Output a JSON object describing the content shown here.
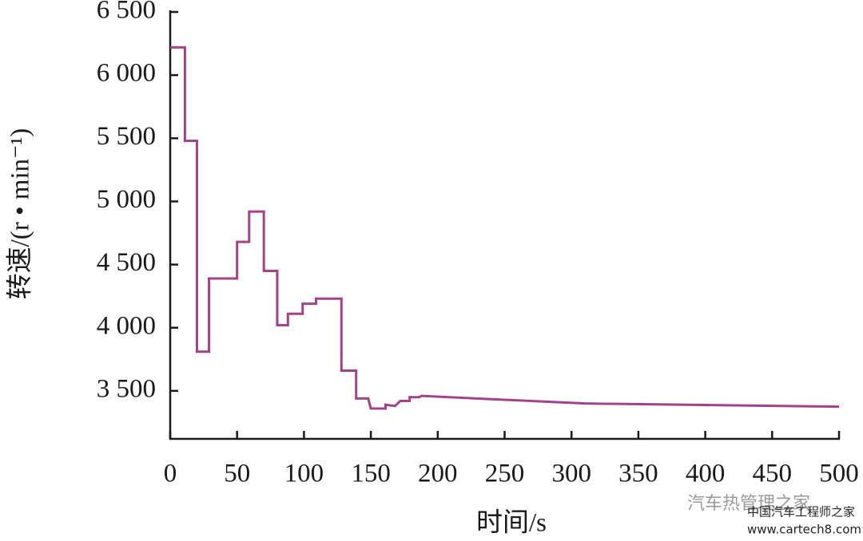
{
  "chart_data": {
    "type": "line",
    "x_label": "时间/s",
    "y_label": "转速/(r • min⁻¹)",
    "x": [
      0,
      11,
      11,
      20,
      20,
      29,
      29,
      50,
      50,
      59,
      59,
      70,
      70,
      80,
      80,
      88,
      88,
      99,
      99,
      109,
      109,
      128,
      128,
      139,
      139,
      148,
      150,
      161,
      161,
      168,
      172,
      179,
      179,
      186,
      188,
      310,
      500
    ],
    "series": [
      {
        "name": "转速",
        "color": "#a3418b",
        "values": [
          6220,
          6220,
          5480,
          5480,
          3810,
          3810,
          4390,
          4390,
          4680,
          4680,
          4920,
          4920,
          4450,
          4450,
          4020,
          4020,
          4110,
          4110,
          4190,
          4190,
          4230,
          4230,
          3660,
          3660,
          3440,
          3440,
          3360,
          3360,
          3390,
          3380,
          3420,
          3420,
          3450,
          3450,
          3460,
          3400,
          3375
        ]
      }
    ],
    "xlim": [
      0,
      500
    ],
    "ylim": [
      3120,
      6500
    ],
    "xticks": [
      0,
      50,
      100,
      150,
      200,
      250,
      300,
      350,
      400,
      450,
      500
    ],
    "yticks": [
      {
        "value": 3500,
        "label": "3 500"
      },
      {
        "value": 4000,
        "label": "4 000"
      },
      {
        "value": 4500,
        "label": "4 500"
      },
      {
        "value": 5000,
        "label": "5 000"
      },
      {
        "value": 5500,
        "label": "5 500"
      },
      {
        "value": 6000,
        "label": "6 000"
      },
      {
        "value": 6500,
        "label": "6 500"
      }
    ],
    "annotations": [
      "汽车热管理之家",
      "中国汽车工程师之家",
      "www.cartech8.com"
    ]
  }
}
